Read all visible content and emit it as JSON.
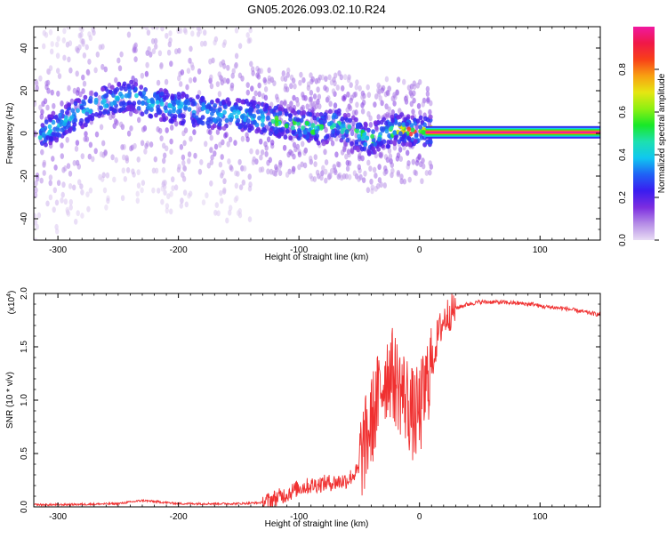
{
  "title": "GN05.2026.093.02.10.R24",
  "colorbar": {
    "label": "Normalized spectral amplitude",
    "ticks": [
      0.0,
      0.2,
      0.4,
      0.6,
      0.8
    ],
    "tick_labels": [
      "0.0",
      "0.2",
      "0.4",
      "0.6",
      "0.8"
    ],
    "range": [
      0,
      1
    ],
    "colors": [
      "#e8dcf4",
      "#b58ce6",
      "#7c2de0",
      "#3a1cf0",
      "#1f62f5",
      "#10c7f0",
      "#1de0b0",
      "#18e828",
      "#8ef012",
      "#e6e612",
      "#f8a012",
      "#f84018",
      "#f01848",
      "#f018a0"
    ]
  },
  "chart_data": [
    {
      "type": "heatmap",
      "title": "",
      "xlabel": "Height of straight line (km)",
      "ylabel": "Frequency (Hz)",
      "xlim": [
        -320,
        150
      ],
      "ylim": [
        -50,
        50
      ],
      "xticks": [
        -300,
        -200,
        -100,
        0,
        100
      ],
      "xtick_labels": [
        "-300",
        "-200",
        "-100",
        "0",
        "100"
      ],
      "yticks": [
        -40,
        -20,
        0,
        20,
        40
      ],
      "ytick_labels": [
        "-40",
        "-20",
        "0",
        "20",
        "40"
      ],
      "ridge": {
        "x": [
          -315,
          -300,
          -280,
          -260,
          -240,
          -220,
          -200,
          -180,
          -160,
          -140,
          -120,
          -100,
          -80,
          -70,
          -60,
          -50,
          -40,
          -30,
          -25,
          -20,
          -15,
          -10,
          -5,
          0,
          5
        ],
        "y": [
          -2,
          4,
          10,
          15,
          18,
          14,
          12,
          10,
          9,
          8,
          6,
          4,
          2,
          5,
          2,
          -1,
          -3,
          0,
          1,
          2,
          2,
          1.5,
          1.5,
          1,
          1
        ]
      },
      "tone": {
        "x_start": 5,
        "x_end": 150,
        "frequency": 0.5,
        "amplitude": 1.0
      }
    },
    {
      "type": "line",
      "title": "",
      "xlabel": "Height of straight line (km)",
      "ylabel": "SNR (10 * v/v)",
      "y_multiplier_label": "(x10",
      "y_multiplier_exp": "4",
      "y_multiplier_close": ")",
      "xlim": [
        -320,
        150
      ],
      "ylim": [
        0,
        2.0
      ],
      "xticks": [
        -300,
        -200,
        -100,
        0,
        100
      ],
      "xtick_labels": [
        "-300",
        "-200",
        "-100",
        "0",
        "100"
      ],
      "yticks": [
        0.0,
        0.5,
        1.0,
        1.5,
        2.0
      ],
      "ytick_labels": [
        "0.0",
        "0.5",
        "1.0",
        "1.5",
        "2.0"
      ],
      "series": [
        {
          "color": "#f03030",
          "x": [
            -320,
            -300,
            -250,
            -230,
            -220,
            -200,
            -150,
            -130,
            -120,
            -110,
            -100,
            -90,
            -80,
            -70,
            -60,
            -50,
            -45,
            -40,
            -35,
            -30,
            -25,
            -20,
            -15,
            -10,
            -5,
            0,
            5,
            10,
            15,
            20,
            25,
            30,
            40,
            50,
            60,
            80,
            90,
            95,
            100,
            110,
            120,
            130,
            140,
            150
          ],
          "y": [
            0.02,
            0.02,
            0.03,
            0.06,
            0.05,
            0.03,
            0.03,
            0.04,
            0.08,
            0.12,
            0.18,
            0.2,
            0.22,
            0.23,
            0.25,
            0.35,
            0.5,
            0.7,
            0.9,
            1.1,
            1.2,
            1.1,
            1.0,
            0.9,
            0.75,
            0.8,
            1.0,
            1.3,
            1.6,
            1.75,
            1.82,
            1.86,
            1.9,
            1.92,
            1.92,
            1.91,
            1.9,
            1.9,
            1.88,
            1.87,
            1.86,
            1.84,
            1.82,
            1.8
          ]
        }
      ]
    }
  ]
}
